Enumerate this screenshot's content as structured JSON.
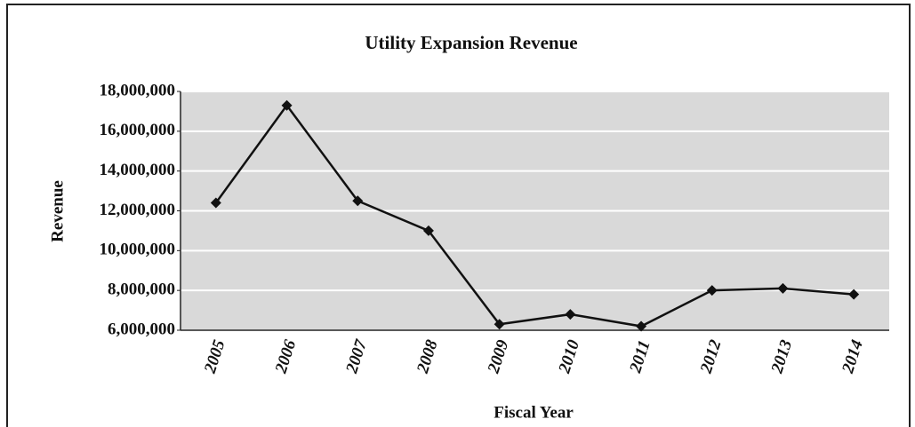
{
  "chart_data": {
    "type": "line",
    "title": "Utility Expansion Revenue",
    "x_label": "Fiscal Year",
    "y_label": "Revenue",
    "categories": [
      "2005",
      "2006",
      "2007",
      "2008",
      "2009",
      "2010",
      "2011",
      "2012",
      "2013",
      "2014"
    ],
    "series": [
      {
        "name": "Revenue",
        "color": "#111111",
        "values": [
          12400000,
          17300000,
          12500000,
          11000000,
          6300000,
          6800000,
          6200000,
          8000000,
          8100000,
          7800000
        ]
      }
    ],
    "ylim": [
      6000000,
      18000000
    ],
    "yticks": [
      {
        "value": 6000000,
        "label": "6,000,000"
      },
      {
        "value": 8000000,
        "label": "8,000,000"
      },
      {
        "value": 10000000,
        "label": "10,000,000"
      },
      {
        "value": 12000000,
        "label": "12,000,000"
      },
      {
        "value": 14000000,
        "label": "14,000,000"
      },
      {
        "value": 16000000,
        "label": "16,000,000"
      },
      {
        "value": 18000000,
        "label": "18,000,000"
      }
    ],
    "grid": true
  }
}
